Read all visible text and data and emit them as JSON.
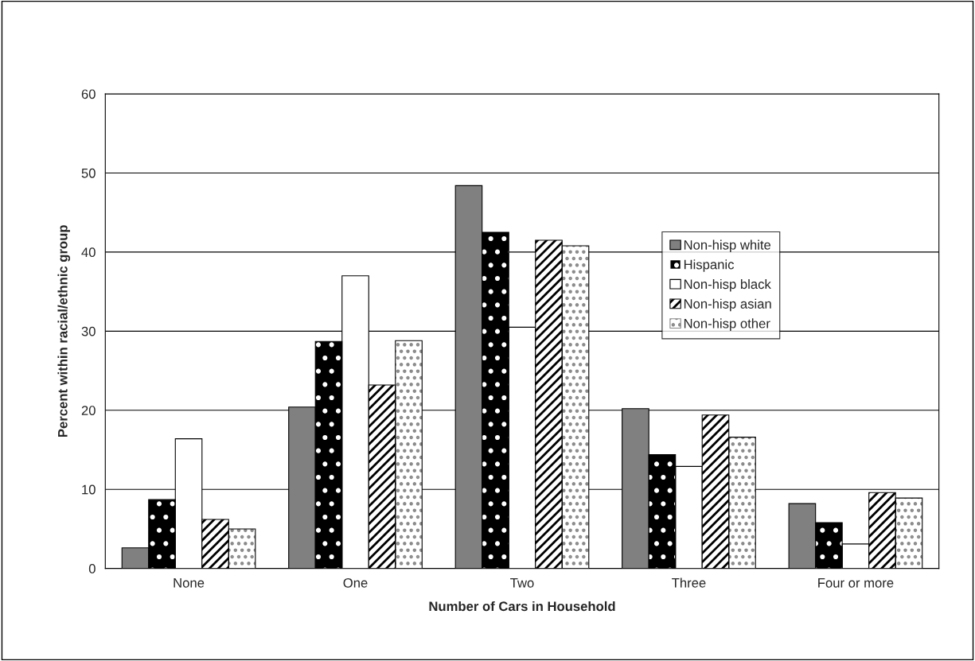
{
  "chart_data": {
    "type": "bar",
    "xlabel": "Number of Cars in Household",
    "ylabel": "Percent within racial/ethnic group",
    "categories": [
      "None",
      "One",
      "Two",
      "Three",
      "Four or more"
    ],
    "series": [
      {
        "name": "Non-hisp white",
        "color": "#808080",
        "values": [
          2.6,
          20.4,
          48.4,
          20.2,
          8.2
        ]
      },
      {
        "name": "Hispanic",
        "color": "#000000",
        "values": [
          8.7,
          28.7,
          42.5,
          14.4,
          5.8
        ]
      },
      {
        "name": "Non-hisp black",
        "color": "#ffffff",
        "values": [
          16.4,
          37.0,
          30.5,
          12.9,
          3.1
        ]
      },
      {
        "name": "Non-hisp asian",
        "color": "#ffffff",
        "values": [
          6.2,
          23.2,
          41.5,
          19.4,
          9.6
        ]
      },
      {
        "name": "Non-hisp other",
        "color": "#ffffff",
        "values": [
          5.0,
          28.8,
          40.8,
          16.6,
          8.9
        ]
      }
    ],
    "ylim": [
      0,
      60
    ],
    "yticks": [
      0,
      10,
      20,
      30,
      40,
      50,
      60
    ],
    "grid": "y",
    "legend": "top right"
  }
}
